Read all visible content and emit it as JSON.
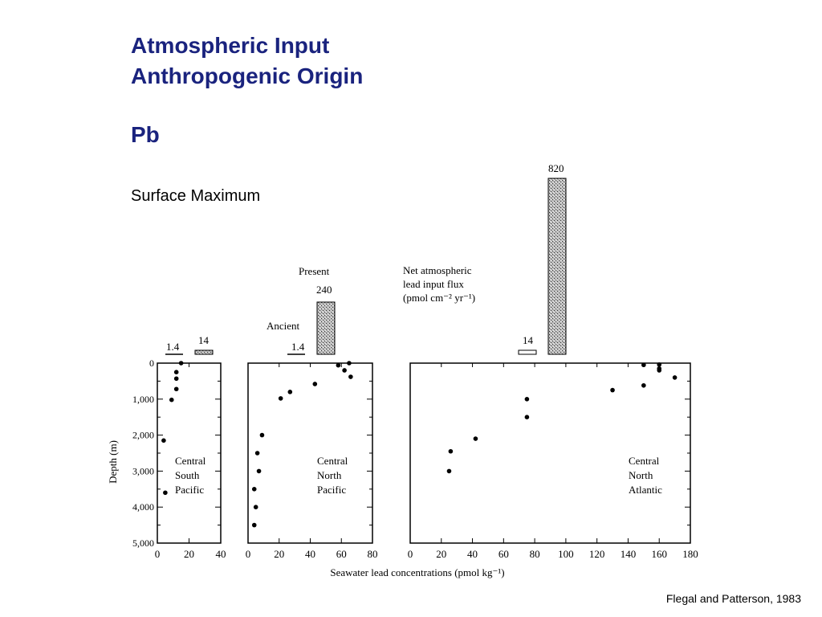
{
  "slide": {
    "title_lines": [
      "Atmospheric Input",
      "Anthropogenic Origin"
    ],
    "element": "Pb",
    "subtitle": "Surface Maximum",
    "citation": "Flegal and Patterson, 1983"
  },
  "chart_data": {
    "type": "scatter",
    "xlabel": "Seawater lead concentrations (pmol kg⁻¹)",
    "ylabel": "Depth (m)",
    "y_ticks": [
      "0",
      "1,000",
      "2,000",
      "3,000",
      "4,000",
      "5,000"
    ],
    "ylim": [
      0,
      5000
    ],
    "y_reversed": true,
    "flux_legend": {
      "lines": [
        "Net atmospheric",
        "lead input flux",
        "(pmol cm⁻² yr⁻¹)"
      ],
      "present_label": "Present",
      "ancient_label": "Ancient"
    },
    "panels": [
      {
        "name": "Central South Pacific",
        "label_lines": [
          "Central",
          "South",
          "Pacific"
        ],
        "xlim": [
          0,
          40
        ],
        "x_ticks": [
          0,
          20,
          40
        ],
        "flux": {
          "ancient": "1.4",
          "present": "14"
        },
        "points": [
          {
            "x": 15,
            "y": 0
          },
          {
            "x": 12,
            "y": 250
          },
          {
            "x": 12,
            "y": 430
          },
          {
            "x": 12,
            "y": 720
          },
          {
            "x": 9,
            "y": 1020
          },
          {
            "x": 4,
            "y": 2150
          },
          {
            "x": 5,
            "y": 3600
          }
        ]
      },
      {
        "name": "Central North Pacific",
        "label_lines": [
          "Central",
          "North",
          "Pacific"
        ],
        "xlim": [
          0,
          80
        ],
        "x_ticks": [
          0,
          20,
          40,
          60,
          80
        ],
        "flux": {
          "ancient": "1.4",
          "present": "240"
        },
        "points": [
          {
            "x": 65,
            "y": 0
          },
          {
            "x": 58,
            "y": 60
          },
          {
            "x": 62,
            "y": 200
          },
          {
            "x": 66,
            "y": 380
          },
          {
            "x": 43,
            "y": 580
          },
          {
            "x": 27,
            "y": 800
          },
          {
            "x": 21,
            "y": 980
          },
          {
            "x": 9,
            "y": 2000
          },
          {
            "x": 6,
            "y": 2500
          },
          {
            "x": 7,
            "y": 3000
          },
          {
            "x": 4,
            "y": 3500
          },
          {
            "x": 5,
            "y": 4000
          },
          {
            "x": 4,
            "y": 4500
          }
        ]
      },
      {
        "name": "Central North Atlantic",
        "label_lines": [
          "Central",
          "North",
          "Atlantic"
        ],
        "xlim": [
          0,
          180
        ],
        "x_ticks": [
          0,
          20,
          40,
          60,
          80,
          100,
          120,
          140,
          160,
          180
        ],
        "flux": {
          "ancient": "14",
          "present": "820"
        },
        "points": [
          {
            "x": 150,
            "y": 50
          },
          {
            "x": 160,
            "y": 40
          },
          {
            "x": 160,
            "y": 150
          },
          {
            "x": 160,
            "y": 200
          },
          {
            "x": 170,
            "y": 400
          },
          {
            "x": 150,
            "y": 620
          },
          {
            "x": 130,
            "y": 750
          },
          {
            "x": 75,
            "y": 1000
          },
          {
            "x": 75,
            "y": 1500
          },
          {
            "x": 42,
            "y": 2100
          },
          {
            "x": 26,
            "y": 2450
          },
          {
            "x": 25,
            "y": 3000
          }
        ]
      }
    ]
  }
}
